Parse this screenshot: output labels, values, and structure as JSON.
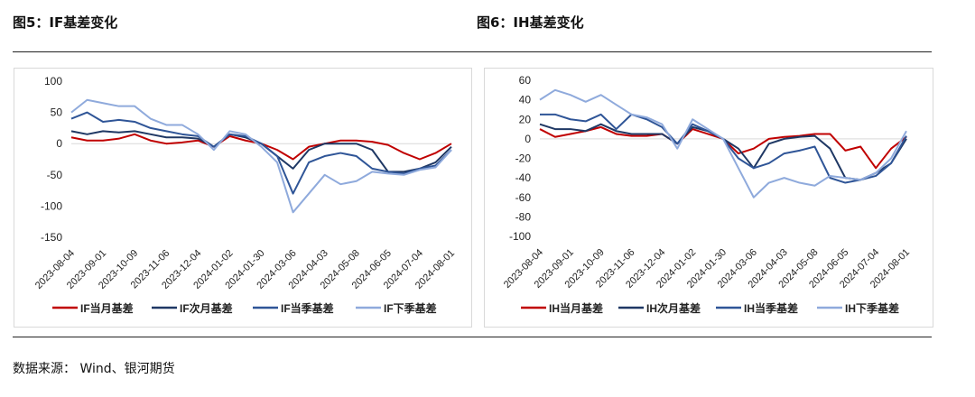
{
  "titles": {
    "left": "图5：IF基差变化",
    "right": "图6：IH基差变化"
  },
  "source": "数据来源： Wind、银河期货",
  "chart_data": [
    {
      "type": "line",
      "title": "图5：IF基差变化",
      "ylim": [
        -150,
        100
      ],
      "yticks": [
        100,
        50,
        0,
        -50,
        -100,
        -150
      ],
      "x_ticks": [
        "2023-08-04",
        "2023-09-01",
        "2023-10-09",
        "2023-11-06",
        "2023-12-04",
        "2024-01-02",
        "2024-01-30",
        "2024-03-06",
        "2024-04-03",
        "2024-05-08",
        "2024-06-05",
        "2024-07-04",
        "2024-08-01"
      ],
      "legend_position": "bottom",
      "series": [
        {
          "name": "IF当月基差",
          "color": "#c00000",
          "values": [
            10,
            5,
            5,
            8,
            15,
            5,
            0,
            2,
            5,
            -5,
            12,
            5,
            0,
            -10,
            -25,
            -5,
            0,
            5,
            5,
            3,
            -2,
            -15,
            -25,
            -15,
            0
          ]
        },
        {
          "name": "IF次月基差",
          "color": "#1f3864",
          "values": [
            20,
            15,
            20,
            18,
            20,
            15,
            10,
            10,
            8,
            -5,
            15,
            10,
            0,
            -20,
            -40,
            -10,
            0,
            0,
            0,
            -10,
            -45,
            -45,
            -40,
            -30,
            -5
          ]
        },
        {
          "name": "IF当季基差",
          "color": "#2f5597",
          "values": [
            40,
            50,
            35,
            38,
            35,
            25,
            20,
            15,
            12,
            -5,
            15,
            12,
            0,
            -20,
            -80,
            -30,
            -20,
            -15,
            -20,
            -40,
            -45,
            -48,
            -40,
            -35,
            -10
          ]
        },
        {
          "name": "IF下季基差",
          "color": "#8faadc",
          "values": [
            50,
            70,
            65,
            60,
            60,
            40,
            30,
            30,
            15,
            -10,
            20,
            15,
            -5,
            -30,
            -110,
            -80,
            -50,
            -65,
            -60,
            -45,
            -48,
            -50,
            -42,
            -38,
            -10
          ]
        }
      ]
    },
    {
      "type": "line",
      "title": "图6：IH基差变化",
      "ylim": [
        -100,
        60
      ],
      "yticks": [
        60,
        40,
        20,
        0,
        -20,
        -40,
        -60,
        -80,
        -100
      ],
      "x_ticks": [
        "2023-08-04",
        "2023-09-01",
        "2023-10-09",
        "2023-11-06",
        "2023-12-04",
        "2024-01-02",
        "2024-01-30",
        "2024-03-06",
        "2024-04-03",
        "2024-05-08",
        "2024-06-05",
        "2024-07-04",
        "2024-08-01"
      ],
      "legend_position": "bottom",
      "series": [
        {
          "name": "IH当月基差",
          "color": "#c00000",
          "values": [
            10,
            2,
            5,
            8,
            12,
            5,
            3,
            3,
            5,
            -5,
            10,
            5,
            0,
            -15,
            -10,
            0,
            2,
            3,
            5,
            5,
            -12,
            -8,
            -30,
            -10,
            2
          ]
        },
        {
          "name": "IH次月基差",
          "color": "#1f3864",
          "values": [
            15,
            10,
            10,
            8,
            15,
            8,
            5,
            5,
            5,
            -5,
            12,
            8,
            0,
            -10,
            -30,
            -5,
            0,
            2,
            3,
            -10,
            -40,
            -42,
            -35,
            -25,
            0
          ]
        },
        {
          "name": "IH当季基差",
          "color": "#2f5597",
          "values": [
            25,
            25,
            20,
            18,
            25,
            10,
            25,
            20,
            12,
            -5,
            15,
            8,
            0,
            -20,
            -30,
            -25,
            -15,
            -12,
            -8,
            -40,
            -45,
            -42,
            -38,
            -25,
            3
          ]
        },
        {
          "name": "IH下季基差",
          "color": "#8faadc",
          "values": [
            40,
            50,
            45,
            38,
            45,
            35,
            25,
            22,
            15,
            -10,
            20,
            10,
            0,
            -30,
            -60,
            -45,
            -40,
            -45,
            -48,
            -38,
            -40,
            -42,
            -35,
            -20,
            8
          ]
        }
      ]
    }
  ]
}
